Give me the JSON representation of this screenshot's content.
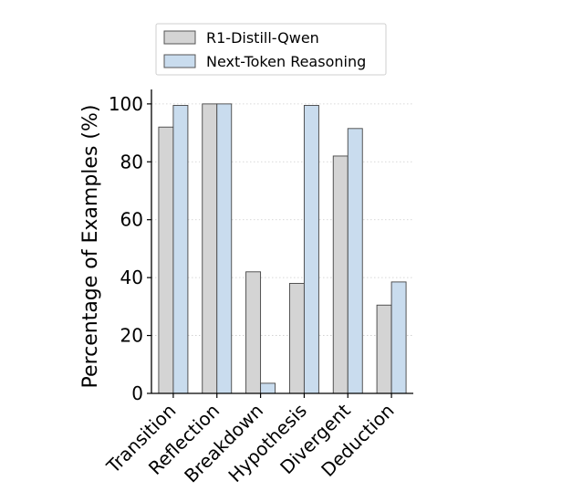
{
  "chart_data": {
    "type": "bar",
    "categories": [
      "Transition",
      "Reflection",
      "Breakdown",
      "Hypothesis",
      "Divergent",
      "Deduction"
    ],
    "series": [
      {
        "name": "R1-Distill-Qwen",
        "values": [
          92,
          100,
          42,
          38,
          82,
          30.5
        ],
        "color": "#d4d4d4"
      },
      {
        "name": "Next-Token Reasoning",
        "values": [
          99.5,
          100,
          3.5,
          99.5,
          91.5,
          38.5
        ],
        "color": "#c9dcee"
      }
    ],
    "ylabel": "Percentage of Examples (%)",
    "xlabel": "",
    "ylim": [
      0,
      105
    ],
    "yticks": [
      0,
      20,
      40,
      60,
      80,
      100
    ],
    "grid": "horizontal dotted",
    "legend_position": "top"
  }
}
